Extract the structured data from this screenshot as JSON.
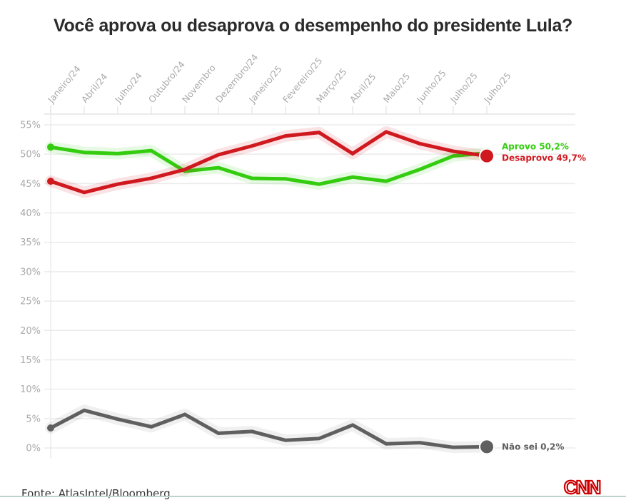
{
  "chart_data": {
    "type": "line",
    "title": "Você aprova ou desaprova o desempenho do presidente Lula?",
    "xlabel": "",
    "ylabel": "",
    "x": [
      "Janeiro/24",
      "Abril/24",
      "Julho/24",
      "Outubro/24",
      "Novembro",
      "Dezembro/24",
      "Janeiro/25",
      "Fevereiro/25",
      "Março/25",
      "Abril/25",
      "Maio/25",
      "Junho/25",
      "Julho/25",
      "Julho/25"
    ],
    "yticks": [
      "0%",
      "5%",
      "10%",
      "15%",
      "20%",
      "25%",
      "30%",
      "35%",
      "40%",
      "45%",
      "50%",
      "55%"
    ],
    "ylim": [
      0,
      55
    ],
    "grid": true,
    "series": [
      {
        "name": "Aprovo",
        "color": "#33cc0f",
        "values": [
          51.2,
          50.3,
          50.1,
          50.6,
          47.1,
          47.7,
          45.9,
          45.8,
          44.9,
          46.1,
          45.4,
          47.4,
          49.7,
          50.2
        ],
        "end_label": "Aprovo 50,2%"
      },
      {
        "name": "Desaprovo",
        "color": "#d0181f",
        "values": [
          45.4,
          43.5,
          44.9,
          45.9,
          47.4,
          49.9,
          51.4,
          53.1,
          53.7,
          50.1,
          53.8,
          51.8,
          50.5,
          49.7
        ],
        "end_label": "Desaprovo 49,7%"
      },
      {
        "name": "Não sei",
        "color": "#5f5f5f",
        "values": [
          3.4,
          6.4,
          4.9,
          3.6,
          5.7,
          2.5,
          2.8,
          1.3,
          1.6,
          3.9,
          0.7,
          0.9,
          0.1,
          0.2
        ],
        "end_label": "Não sei 0,2%"
      }
    ],
    "legend": "end-of-line labels (right)"
  },
  "footer": {
    "source": "Fonte: AtlasIntel/Bloomberg",
    "brand": "CNN"
  }
}
